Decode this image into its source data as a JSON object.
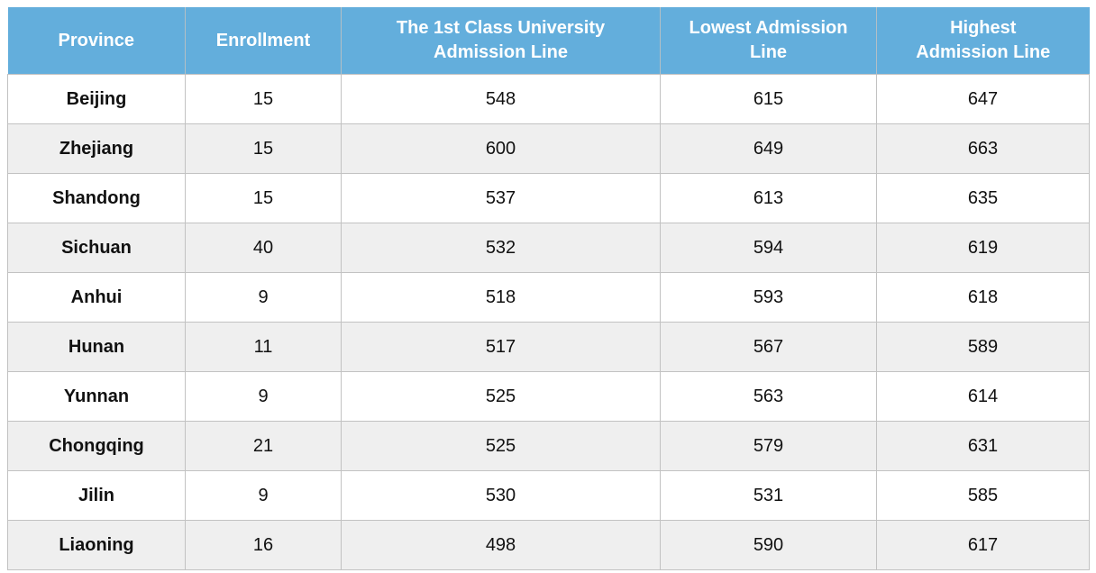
{
  "chart_data": {
    "type": "table",
    "columns": [
      {
        "key": "province",
        "label": "Province"
      },
      {
        "key": "enrollment",
        "label": "Enrollment"
      },
      {
        "key": "first_class_university_admission_line",
        "label": "The 1st Class University\nAdmission Line"
      },
      {
        "key": "lowest_admission_line",
        "label": "Lowest Admission\nLine"
      },
      {
        "key": "highest_admission_line",
        "label": "Highest\nAdmission Line"
      }
    ],
    "rows": [
      {
        "province": "Beijing",
        "enrollment": 15,
        "first_class_university_admission_line": 548,
        "lowest_admission_line": 615,
        "highest_admission_line": 647
      },
      {
        "province": "Zhejiang",
        "enrollment": 15,
        "first_class_university_admission_line": 600,
        "lowest_admission_line": 649,
        "highest_admission_line": 663
      },
      {
        "province": "Shandong",
        "enrollment": 15,
        "first_class_university_admission_line": 537,
        "lowest_admission_line": 613,
        "highest_admission_line": 635
      },
      {
        "province": "Sichuan",
        "enrollment": 40,
        "first_class_university_admission_line": 532,
        "lowest_admission_line": 594,
        "highest_admission_line": 619
      },
      {
        "province": "Anhui",
        "enrollment": 9,
        "first_class_university_admission_line": 518,
        "lowest_admission_line": 593,
        "highest_admission_line": 618
      },
      {
        "province": "Hunan",
        "enrollment": 11,
        "first_class_university_admission_line": 517,
        "lowest_admission_line": 567,
        "highest_admission_line": 589
      },
      {
        "province": "Yunnan",
        "enrollment": 9,
        "first_class_university_admission_line": 525,
        "lowest_admission_line": 563,
        "highest_admission_line": 614
      },
      {
        "province": "Chongqing",
        "enrollment": 21,
        "first_class_university_admission_line": 525,
        "lowest_admission_line": 579,
        "highest_admission_line": 631
      },
      {
        "province": "Jilin",
        "enrollment": 9,
        "first_class_university_admission_line": 530,
        "lowest_admission_line": 531,
        "highest_admission_line": 585
      },
      {
        "province": "Liaoning",
        "enrollment": 16,
        "first_class_university_admission_line": 498,
        "lowest_admission_line": 590,
        "highest_admission_line": 617
      }
    ]
  },
  "colors": {
    "header_bg": "#63AEDC",
    "header_text": "#FFFFFF",
    "header_divider": "#B3BFC6",
    "row_bg": "#FFFFFF",
    "row_alt_bg": "#EFEFEF",
    "grid_line": "#C2C2C2",
    "body_text": "#111111"
  }
}
